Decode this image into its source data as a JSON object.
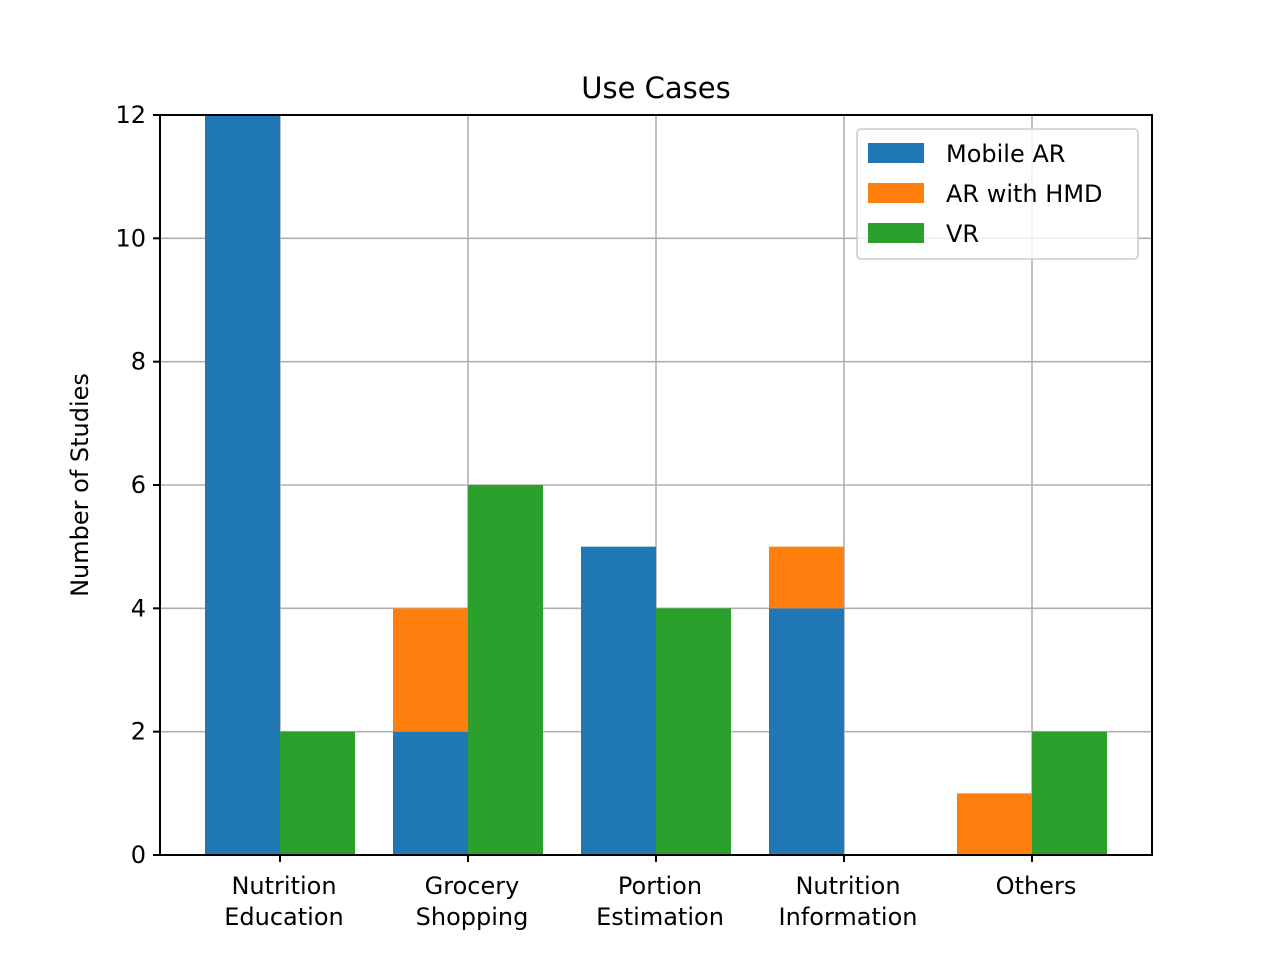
{
  "chart_data": {
    "type": "bar",
    "title": "Use Cases",
    "xlabel": "",
    "ylabel": "Number of Studies",
    "ylim": [
      0,
      12
    ],
    "yticks": [
      0,
      2,
      4,
      6,
      8,
      10,
      12
    ],
    "grid": true,
    "legend_position": "top-right",
    "categories": [
      [
        "Nutrition",
        "Education"
      ],
      [
        "Grocery",
        "Shopping"
      ],
      [
        "Portion",
        "Estimation"
      ],
      [
        "Nutrition",
        "Information"
      ],
      [
        "Others"
      ]
    ],
    "series": [
      {
        "name": "Mobile AR",
        "color": "#1f77b4",
        "values": [
          12,
          2,
          5,
          4,
          0
        ]
      },
      {
        "name": "AR with HMD",
        "color": "#ff7f0e",
        "values": [
          0,
          2,
          0,
          1,
          1
        ]
      },
      {
        "name": "VR",
        "color": "#2ca02c",
        "values": [
          2,
          6,
          4,
          0,
          2
        ]
      }
    ],
    "layout_note_stacking": "Mobile AR and AR with HMD stack on the left bar; VR is the right bar"
  }
}
